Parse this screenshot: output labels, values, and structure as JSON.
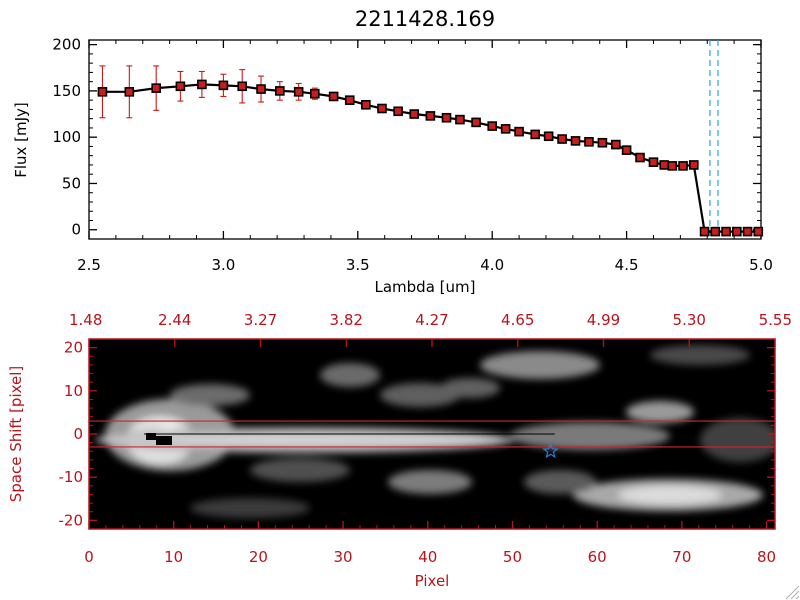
{
  "chart_data": [
    {
      "type": "scatter",
      "title": "2211428.169",
      "xlabel": "Lambda [um]",
      "ylabel": "Flux [mJy]",
      "xlim": [
        2.5,
        5.0
      ],
      "ylim": [
        -10,
        205
      ],
      "xticks": [
        "2.5",
        "3.0",
        "3.5",
        "4.0",
        "4.5",
        "5.0"
      ],
      "yticks": [
        "0",
        "50",
        "100",
        "150",
        "200"
      ],
      "xtick_values": [
        2.5,
        3.0,
        3.5,
        4.0,
        4.5,
        5.0
      ],
      "ytick_values": [
        0,
        50,
        100,
        150,
        200
      ],
      "colors": {
        "line": "#000000",
        "marker": "#c81e1e",
        "errorbar": "#d01818",
        "vline": "#2aa5dc"
      },
      "series": [
        {
          "x": [
            2.55,
            2.65,
            2.75,
            2.84,
            2.92,
            3.0,
            3.07,
            3.14,
            3.21,
            3.28,
            3.34,
            3.41,
            3.47,
            3.53,
            3.59,
            3.65,
            3.71,
            3.77,
            3.83,
            3.88,
            3.94,
            4.0,
            4.05,
            4.1,
            4.16,
            4.21,
            4.26,
            4.31,
            4.36,
            4.41,
            4.46,
            4.5,
            4.55,
            4.6,
            4.64,
            4.67,
            4.71,
            4.75,
            4.79,
            4.83,
            4.87,
            4.91,
            4.95,
            4.99
          ],
          "y": [
            149,
            149,
            153,
            155,
            157,
            156,
            155,
            152,
            150,
            149,
            147,
            144,
            140,
            135,
            131,
            128,
            125,
            123,
            121,
            119,
            116,
            112,
            109,
            106,
            103,
            101,
            98,
            96,
            95,
            94,
            92,
            86,
            78,
            73,
            70,
            69,
            69,
            70,
            -2,
            -2,
            -2,
            -2,
            -2,
            -2
          ],
          "yerr": [
            28,
            28,
            24,
            16,
            14,
            12,
            18,
            14,
            10,
            9,
            6,
            4,
            3,
            3,
            2,
            2,
            2,
            2,
            2,
            2,
            2,
            2,
            2,
            2,
            2,
            2,
            2,
            2,
            2,
            2,
            2,
            2,
            2,
            2,
            2,
            2,
            2,
            2,
            0,
            0,
            0,
            0,
            0,
            0
          ]
        }
      ],
      "vlines": [
        4.81,
        4.84
      ]
    },
    {
      "type": "heatmap",
      "xlabel": "Pixel",
      "ylabel": "Space Shift [pixel]",
      "xlim": [
        0,
        81
      ],
      "ylim": [
        -22,
        22
      ],
      "xticks": [
        "0",
        "10",
        "20",
        "30",
        "40",
        "50",
        "60",
        "70",
        "80"
      ],
      "xtick_values": [
        0,
        10,
        20,
        30,
        40,
        50,
        60,
        70,
        80
      ],
      "yticks": [
        "-20",
        "-10",
        "0",
        "10",
        "20"
      ],
      "ytick_values": [
        -20,
        -10,
        0,
        10,
        20
      ],
      "top_xticks": [
        "1.48",
        "2.44",
        "3.27",
        "3.82",
        "4.27",
        "4.65",
        "4.99",
        "5.30",
        "5.55"
      ],
      "aperture_lines": [
        3,
        -3
      ],
      "trace_y": 0,
      "marker": {
        "x": 54.5,
        "y": -4
      },
      "colors": {
        "axis": "#b8141c",
        "aperture": "#c82828",
        "marker": "#2a7fdc"
      }
    }
  ]
}
